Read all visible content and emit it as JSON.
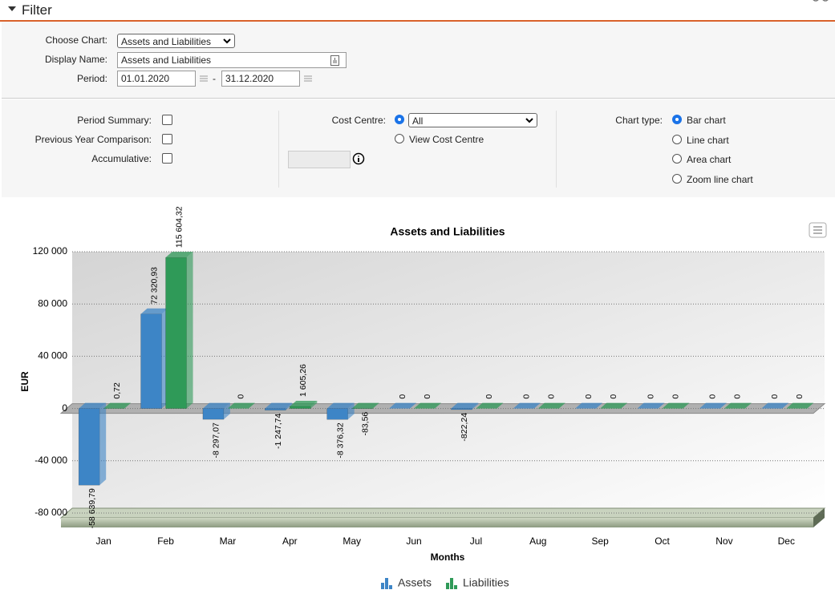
{
  "filter": {
    "title": "Filter",
    "choose_chart_label": "Choose Chart:",
    "choose_chart_value": "Assets and Liabilities",
    "display_name_label": "Display Name:",
    "display_name_value": "Assets and Liabilities",
    "period_label": "Period:",
    "period_from": "01.01.2020",
    "period_separator": "-",
    "period_to": "31.12.2020"
  },
  "options": {
    "period_summary": "Period Summary:",
    "previous_year_comparison": "Previous Year Comparison:",
    "accumulative": "Accumulative:",
    "cost_centre_label": "Cost Centre:",
    "cost_centre_value": "All",
    "view_cost_centre": "View Cost Centre",
    "chart_type_label": "Chart type:",
    "chart_types": [
      "Bar chart",
      "Line chart",
      "Area chart",
      "Zoom line chart"
    ],
    "selected_chart_type": 0
  },
  "chart_data": {
    "type": "bar",
    "title": "Assets and Liabilities",
    "x_label": "Months",
    "y_label": "EUR",
    "categories": [
      "Jan",
      "Feb",
      "Mar",
      "Apr",
      "May",
      "Jun",
      "Jul",
      "Aug",
      "Sep",
      "Oct",
      "Nov",
      "Dec"
    ],
    "series": [
      {
        "name": "Assets",
        "color": "#3d85c6",
        "values": [
          -58639.79,
          72320.93,
          -8297.07,
          -1247.74,
          -8376.32,
          0,
          -822.24,
          0,
          0,
          0,
          0,
          0
        ],
        "value_labels": [
          "-58 639,79",
          "72 320,93",
          "-8 297,07",
          "-1 247,74",
          "-8 376,32",
          "0",
          "-822,24",
          "0",
          "0",
          "0",
          "0",
          "0"
        ]
      },
      {
        "name": "Liabilities",
        "color": "#2f9a58",
        "values": [
          0.72,
          115604.32,
          0,
          1605.26,
          -83.56,
          0,
          0,
          0,
          0,
          0,
          0,
          0
        ],
        "value_labels": [
          "0,72",
          "115 604,32",
          "0",
          "1 605,26",
          "-83,56",
          "0",
          "0",
          "0",
          "0",
          "0",
          "0",
          "0"
        ]
      }
    ],
    "ylim": [
      -80000,
      120000
    ],
    "yticks": [
      {
        "value": -80000,
        "label": "-80 000"
      },
      {
        "value": -40000,
        "label": "-40 000"
      },
      0,
      {
        "value": 40000,
        "label": "40 000"
      },
      {
        "value": 80000,
        "label": "80 000"
      },
      {
        "value": 120000,
        "label": "120 000"
      }
    ],
    "grid": true,
    "legend": "bottom"
  }
}
